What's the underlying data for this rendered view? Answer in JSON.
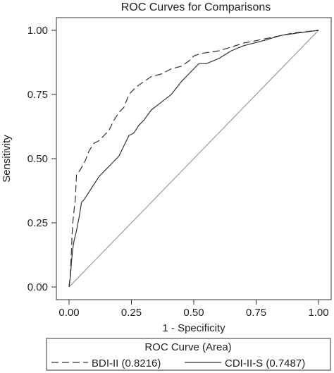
{
  "chart_data": {
    "type": "line",
    "title": "ROC Curves for Comparisons",
    "xlabel": "1 - Specificity",
    "ylabel": "Sensitivity",
    "xlim": [
      0,
      1
    ],
    "ylim": [
      0,
      1
    ],
    "xticks": [
      "0.00",
      "0.25",
      "0.50",
      "0.75",
      "1.00"
    ],
    "yticks": [
      "0.00",
      "0.25",
      "0.50",
      "0.75",
      "1.00"
    ],
    "grid": false,
    "legend": {
      "title": "ROC Curve (Area)",
      "placement": "bottom",
      "entries": [
        "BDI-II (0.8216)",
        "CDI-II-S (0.7487)"
      ]
    },
    "reference_line": {
      "x": [
        0,
        1
      ],
      "y": [
        0,
        1
      ]
    },
    "series": [
      {
        "name": "BDI-II (0.8216)",
        "style": "dashed",
        "x": [
          0.0,
          0.005,
          0.01,
          0.012,
          0.015,
          0.02,
          0.025,
          0.03,
          0.04,
          0.06,
          0.08,
          0.1,
          0.12,
          0.14,
          0.16,
          0.18,
          0.2,
          0.22,
          0.24,
          0.27,
          0.3,
          0.33,
          0.37,
          0.41,
          0.45,
          0.48,
          0.5,
          0.53,
          0.6,
          0.7,
          0.8,
          0.9,
          1.0
        ],
        "y": [
          0.0,
          0.05,
          0.15,
          0.2,
          0.25,
          0.3,
          0.34,
          0.44,
          0.45,
          0.48,
          0.53,
          0.56,
          0.57,
          0.59,
          0.61,
          0.65,
          0.68,
          0.7,
          0.75,
          0.78,
          0.8,
          0.82,
          0.83,
          0.85,
          0.86,
          0.88,
          0.9,
          0.91,
          0.92,
          0.95,
          0.97,
          0.99,
          1.0
        ]
      },
      {
        "name": "CDI-II-S (0.7487)",
        "style": "solid",
        "x": [
          0.0,
          0.005,
          0.01,
          0.015,
          0.02,
          0.03,
          0.04,
          0.05,
          0.06,
          0.08,
          0.1,
          0.12,
          0.14,
          0.16,
          0.18,
          0.2,
          0.22,
          0.24,
          0.26,
          0.28,
          0.3,
          0.33,
          0.37,
          0.41,
          0.45,
          0.48,
          0.52,
          0.55,
          0.6,
          0.65,
          0.7,
          0.78,
          0.85,
          0.92,
          1.0
        ],
        "y": [
          0.0,
          0.04,
          0.1,
          0.15,
          0.18,
          0.22,
          0.27,
          0.33,
          0.34,
          0.37,
          0.4,
          0.43,
          0.45,
          0.47,
          0.49,
          0.51,
          0.55,
          0.59,
          0.6,
          0.63,
          0.65,
          0.69,
          0.72,
          0.75,
          0.8,
          0.83,
          0.87,
          0.87,
          0.89,
          0.92,
          0.94,
          0.96,
          0.98,
          0.99,
          1.0
        ]
      }
    ]
  }
}
